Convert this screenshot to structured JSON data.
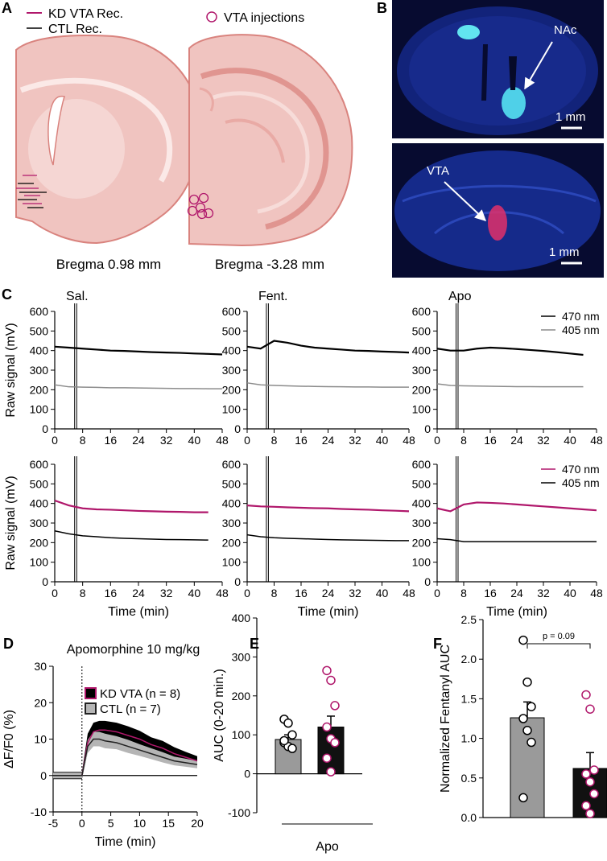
{
  "panel_labels": [
    "A",
    "B",
    "C",
    "D",
    "E",
    "F"
  ],
  "panel_a": {
    "legend": [
      "KD VTA Rec.",
      "CTL Rec."
    ],
    "injection_label": "VTA injections",
    "sections": [
      "Bregma 0.98 mm",
      "Bregma -3.28 mm"
    ]
  },
  "panel_b": {
    "labels": [
      "NAc",
      "VTA"
    ],
    "scale_bars": [
      "1 mm",
      "1 mm"
    ]
  },
  "chart_data": [
    {
      "type": "line",
      "title": "Sal.",
      "ylabel": "Raw signal (mV)",
      "x": [
        0,
        4,
        8,
        12,
        16,
        20,
        24,
        28,
        32,
        36,
        40,
        44,
        48
      ],
      "event_lines": [
        5.7,
        6.3
      ],
      "series": [
        {
          "color": "#000000",
          "values": [
            420,
            415,
            410,
            405,
            400,
            398,
            395,
            392,
            390,
            388,
            385,
            383,
            380
          ]
        },
        {
          "color": "#8c8c8c",
          "values": [
            225,
            215,
            213,
            212,
            210,
            210,
            209,
            208,
            207,
            206,
            206,
            205,
            205
          ]
        }
      ],
      "xlim": [
        0,
        48
      ],
      "xticks": [
        0,
        8,
        16,
        24,
        32,
        40,
        48
      ],
      "ylim": [
        0,
        600
      ],
      "yticks": [
        0,
        100,
        200,
        300,
        400,
        500,
        600
      ]
    },
    {
      "type": "line",
      "title": "Fent.",
      "x": [
        0,
        4,
        8,
        12,
        16,
        20,
        24,
        28,
        32,
        36,
        40,
        44,
        48
      ],
      "event_lines": [
        5.7,
        6.3
      ],
      "series": [
        {
          "color": "#000000",
          "values": [
            420,
            410,
            450,
            440,
            425,
            415,
            410,
            405,
            400,
            398,
            395,
            393,
            390
          ]
        },
        {
          "color": "#8c8c8c",
          "values": [
            235,
            225,
            222,
            220,
            218,
            217,
            216,
            215,
            214,
            214,
            213,
            213,
            213
          ]
        }
      ],
      "xlim": [
        0,
        48
      ],
      "xticks": [
        0,
        8,
        16,
        24,
        32,
        40,
        48
      ],
      "ylim": [
        0,
        600
      ],
      "yticks": [
        0,
        100,
        200,
        300,
        400,
        500,
        600
      ]
    },
    {
      "type": "line",
      "title": "Apo",
      "x": [
        0,
        4,
        8,
        12,
        16,
        20,
        24,
        28,
        32,
        36,
        40,
        44,
        48
      ],
      "event_lines": [
        5.7,
        6.3
      ],
      "series": [
        {
          "name": "470 nm",
          "color": "#000000",
          "values": [
            410,
            400,
            400,
            410,
            415,
            412,
            408,
            403,
            398,
            392,
            385,
            378,
            null
          ]
        },
        {
          "name": "405 nm",
          "color": "#8c8c8c",
          "values": [
            230,
            222,
            220,
            219,
            218,
            217,
            216,
            216,
            215,
            215,
            215,
            215,
            null
          ]
        }
      ],
      "xlim": [
        0,
        48
      ],
      "xticks": [
        0,
        8,
        16,
        24,
        32,
        40,
        48
      ],
      "ylim": [
        0,
        600
      ],
      "yticks": [
        0,
        100,
        200,
        300,
        400,
        500,
        600
      ]
    },
    {
      "type": "line",
      "ylabel": "Raw signal (mV)",
      "xlabel": "Time (min)",
      "x": [
        0,
        4,
        8,
        12,
        16,
        20,
        24,
        28,
        32,
        36,
        40,
        44,
        48
      ],
      "event_lines": [
        5.7,
        6.3
      ],
      "series": [
        {
          "color": "#b0176b",
          "values": [
            415,
            390,
            375,
            370,
            368,
            365,
            362,
            360,
            358,
            357,
            355,
            355,
            null
          ]
        },
        {
          "color": "#000000",
          "values": [
            260,
            245,
            235,
            230,
            225,
            222,
            220,
            218,
            216,
            215,
            214,
            213,
            null
          ]
        }
      ],
      "xlim": [
        0,
        48
      ],
      "xticks": [
        0,
        8,
        16,
        24,
        32,
        40,
        48
      ],
      "ylim": [
        0,
        600
      ],
      "yticks": [
        0,
        100,
        200,
        300,
        400,
        500,
        600
      ]
    },
    {
      "type": "line",
      "xlabel": "Time (min)",
      "x": [
        0,
        4,
        8,
        12,
        16,
        20,
        24,
        28,
        32,
        36,
        40,
        44,
        48
      ],
      "event_lines": [
        5.7,
        6.3
      ],
      "series": [
        {
          "color": "#b0176b",
          "values": [
            390,
            385,
            383,
            380,
            378,
            376,
            375,
            372,
            370,
            368,
            365,
            363,
            360
          ]
        },
        {
          "color": "#000000",
          "values": [
            240,
            230,
            225,
            222,
            220,
            218,
            216,
            214,
            213,
            212,
            211,
            210,
            210
          ]
        }
      ],
      "xlim": [
        0,
        48
      ],
      "xticks": [
        0,
        8,
        16,
        24,
        32,
        40,
        48
      ],
      "ylim": [
        0,
        600
      ],
      "yticks": [
        0,
        100,
        200,
        300,
        400,
        500,
        600
      ]
    },
    {
      "type": "line",
      "xlabel": "Time (min)",
      "x": [
        0,
        4,
        8,
        12,
        16,
        20,
        24,
        28,
        32,
        36,
        40,
        44,
        48
      ],
      "event_lines": [
        5.7,
        6.3
      ],
      "series": [
        {
          "name": "470 nm",
          "color": "#b0176b",
          "values": [
            375,
            360,
            395,
            405,
            403,
            400,
            395,
            390,
            385,
            380,
            375,
            370,
            365
          ]
        },
        {
          "name": "405 nm",
          "color": "#000000",
          "values": [
            220,
            215,
            205,
            205,
            205,
            205,
            205,
            205,
            205,
            205,
            205,
            205,
            205
          ]
        }
      ],
      "xlim": [
        0,
        48
      ],
      "xticks": [
        0,
        8,
        16,
        24,
        32,
        40,
        48
      ],
      "ylim": [
        0,
        600
      ],
      "yticks": [
        0,
        100,
        200,
        300,
        400,
        500,
        600
      ]
    },
    {
      "type": "line",
      "title": "Apomorphine 10 mg/kg",
      "ylabel": "ΔF/F0 (%)",
      "xlabel": "Time (min)",
      "vline": 0,
      "hline": 0,
      "x": [
        -5,
        -2.5,
        0,
        1,
        2,
        3,
        4,
        6,
        8,
        10,
        12,
        14,
        16,
        18,
        20
      ],
      "series": [
        {
          "name": "KD VTA (n = 8)",
          "color": "#b0176b",
          "band_color": "#000000",
          "values": [
            0,
            0,
            0,
            9,
            12,
            12.5,
            12.5,
            12,
            11,
            10,
            8.5,
            7.5,
            6,
            5,
            4
          ],
          "errors": [
            1,
            1,
            1,
            2.5,
            2.5,
            2.5,
            2.5,
            2.5,
            2.5,
            2.3,
            2,
            2,
            1.8,
            1.5,
            1.3
          ]
        },
        {
          "name": "CTL (n = 7)",
          "color": "#222222",
          "band_color": "#b5b5b5",
          "values": [
            0,
            0,
            0,
            8,
            10,
            10,
            9.5,
            9,
            8,
            7,
            6,
            5,
            4,
            3.5,
            3
          ],
          "errors": [
            0.8,
            0.8,
            0.8,
            1.8,
            2,
            2,
            2,
            1.8,
            1.8,
            1.6,
            1.5,
            1.4,
            1.2,
            1.1,
            1
          ]
        }
      ],
      "xlim": [
        -5,
        20
      ],
      "xticks": [
        -5,
        0,
        5,
        10,
        15,
        20
      ],
      "ylim": [
        -10,
        30
      ],
      "yticks": [
        -10,
        0,
        10,
        20,
        30
      ]
    },
    {
      "type": "bar",
      "ylabel": "AUC (0-20 min.)",
      "group_label": "Apo",
      "values": [
        88,
        120
      ],
      "errors": [
        12,
        28
      ],
      "colors": [
        "#9a9a9a",
        "#111111"
      ],
      "point_colors": [
        "#000000",
        "#b0176b"
      ],
      "points": [
        [
          140,
          130,
          100,
          80,
          70,
          65,
          85
        ],
        [
          265,
          240,
          175,
          120,
          90,
          80,
          40,
          5
        ]
      ],
      "ylim": [
        -100,
        400
      ],
      "yticks": [
        -100,
        0,
        100,
        200,
        300,
        400
      ]
    },
    {
      "type": "bar",
      "ylabel": "Normalized Fentanyl AUC",
      "annotation": "p = 0.09",
      "values": [
        1.26,
        0.62
      ],
      "errors": [
        0.2,
        0.2
      ],
      "colors": [
        "#9a9a9a",
        "#111111"
      ],
      "point_colors": [
        "#000000",
        "#b0176b"
      ],
      "points": [
        [
          2.24,
          1.71,
          1.4,
          1.25,
          1.1,
          0.95,
          0.25
        ],
        [
          1.55,
          1.37,
          0.6,
          0.55,
          0.45,
          0.3,
          0.15,
          0.05
        ]
      ],
      "ylim": [
        0,
        2.5
      ],
      "yticks": [
        {
          "value": 0,
          "label": "0.0"
        },
        0.5,
        {
          "value": 1,
          "label": "1.0"
        },
        1.5,
        {
          "value": 2,
          "label": "2.0"
        },
        2.5
      ]
    }
  ]
}
